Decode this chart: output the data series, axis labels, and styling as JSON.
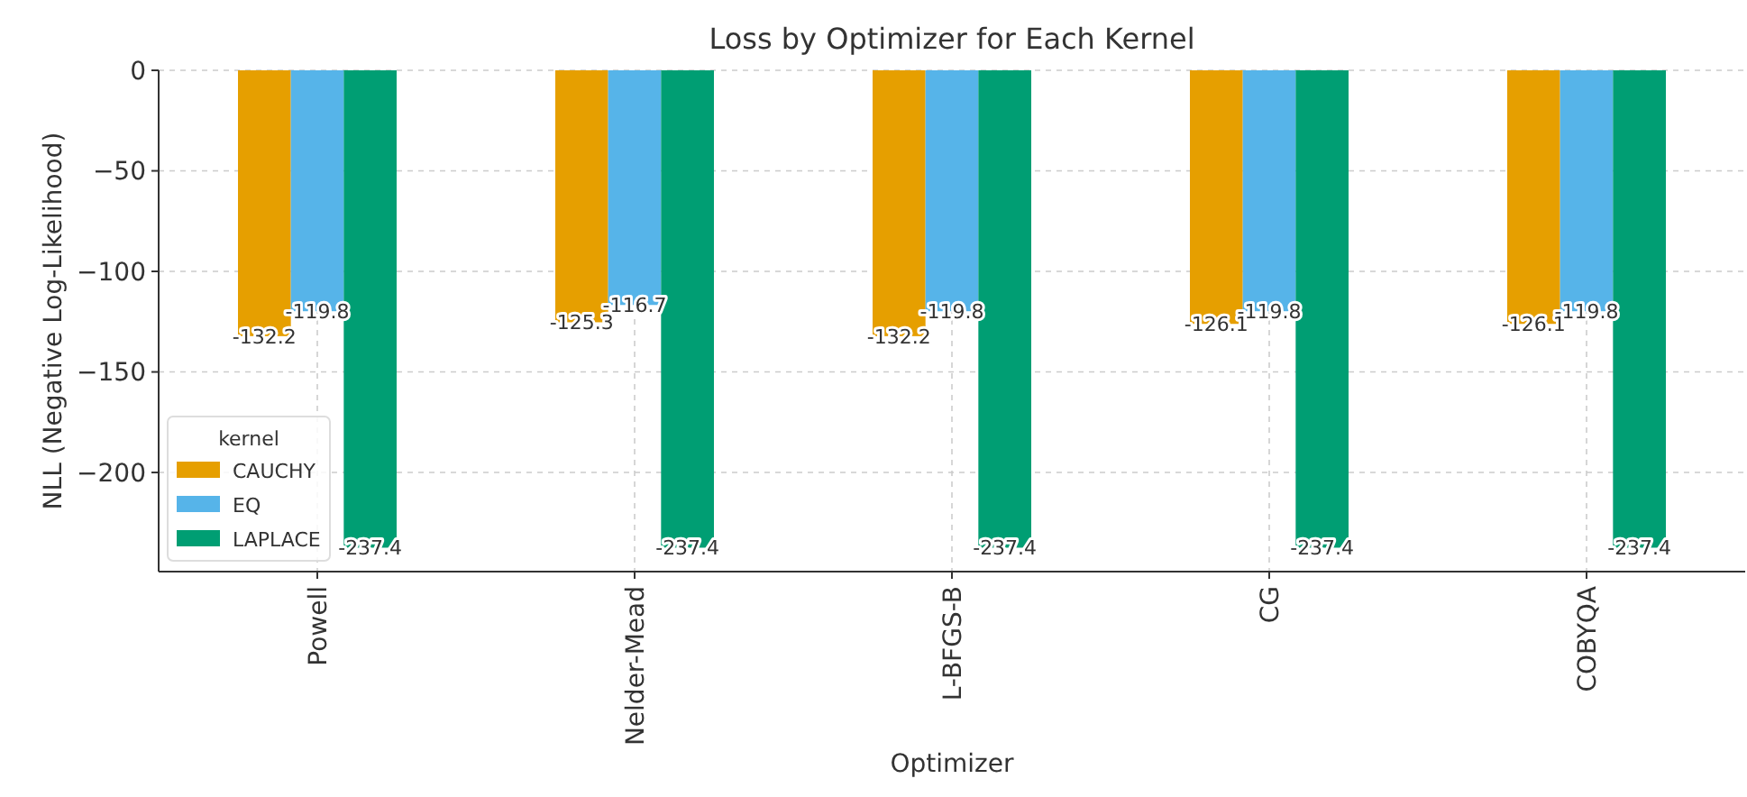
{
  "chart_data": {
    "type": "bar",
    "title": "Loss by Optimizer for Each Kernel",
    "xlabel": "Optimizer",
    "ylabel": "NLL (Negative Log-Likelihood)",
    "legend_title": "kernel",
    "categories": [
      "Powell",
      "Nelder-Mead",
      "L-BFGS-B",
      "CG",
      "COBYQA"
    ],
    "series": [
      {
        "name": "CAUCHY",
        "color": "#e69f00",
        "values": [
          -132.2,
          -125.3,
          -132.2,
          -126.1,
          -126.1
        ]
      },
      {
        "name": "EQ",
        "color": "#56b4e9",
        "values": [
          -119.8,
          -116.7,
          -119.8,
          -119.8,
          -119.8
        ]
      },
      {
        "name": "LAPLACE",
        "color": "#009e73",
        "values": [
          -237.4,
          -237.4,
          -237.4,
          -237.4,
          -237.4
        ]
      }
    ],
    "ylim": [
      -249.3,
      0
    ],
    "yticks": [
      {
        "value": 0,
        "label": "0"
      },
      {
        "value": -50,
        "label": "−50"
      },
      {
        "value": -100,
        "label": "−100"
      },
      {
        "value": -150,
        "label": "−150"
      },
      {
        "value": -200,
        "label": "−200"
      }
    ],
    "grid": true,
    "legend": "bottom left",
    "data_labels": true
  }
}
